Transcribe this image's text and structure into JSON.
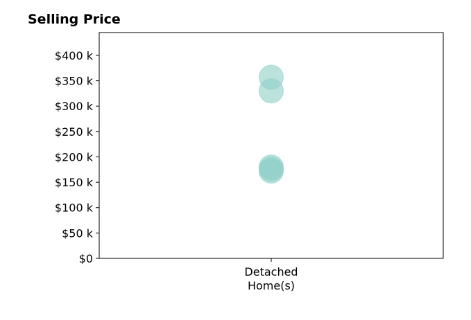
{
  "chart_data": {
    "type": "scatter",
    "title": "Selling Price",
    "xlabel": "",
    "ylabel": "",
    "categories": [
      "Detached\nHome(s)"
    ],
    "y_ticks": [
      0,
      50000,
      100000,
      150000,
      200000,
      250000,
      300000,
      350000,
      400000
    ],
    "y_tick_labels": [
      "$0",
      "$50 k",
      "$100 k",
      "$150 k",
      "$200 k",
      "$250 k",
      "$300 k",
      "$350 k",
      "$400 k"
    ],
    "ylim": [
      0,
      445000
    ],
    "grid": false,
    "legend": "none",
    "series": [
      {
        "color": "#8fcfc8",
        "points": [
          {
            "category": "Detached\nHome(s)",
            "y": 357000
          },
          {
            "category": "Detached\nHome(s)",
            "y": 330000
          },
          {
            "category": "Detached\nHome(s)",
            "y": 180000
          },
          {
            "category": "Detached\nHome(s)",
            "y": 176000
          },
          {
            "category": "Detached\nHome(s)",
            "y": 172000
          }
        ]
      }
    ]
  }
}
